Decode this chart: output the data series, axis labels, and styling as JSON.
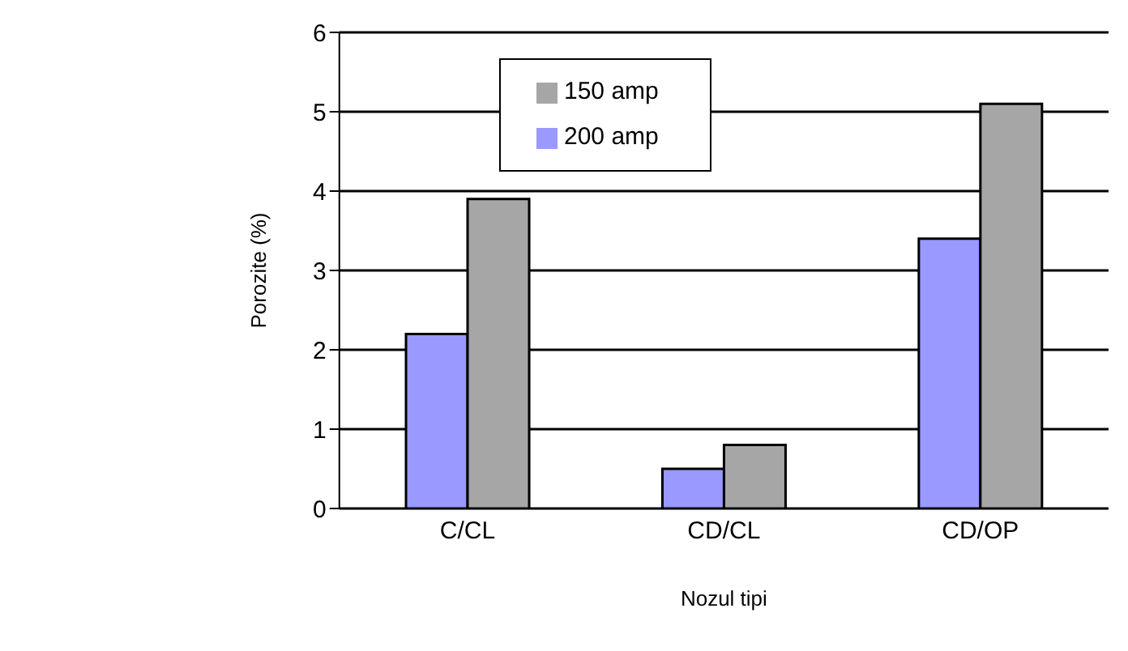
{
  "chart_data": {
    "type": "bar",
    "xlabel": "Nozul tipi",
    "ylabel": "Porozite (%)",
    "categories": [
      "C/CL",
      "CD/CL",
      "CD/OP"
    ],
    "series": [
      {
        "name": "200 amp",
        "color": "#9999ff",
        "values": [
          2.2,
          0.5,
          3.4
        ]
      },
      {
        "name": "150 amp",
        "color": "#a6a6a6",
        "values": [
          3.9,
          0.8,
          5.1
        ]
      }
    ],
    "ylim": [
      0,
      6
    ],
    "yticks": [
      0,
      1,
      2,
      3,
      4,
      5,
      6
    ],
    "grid": "y",
    "legend": "top"
  }
}
